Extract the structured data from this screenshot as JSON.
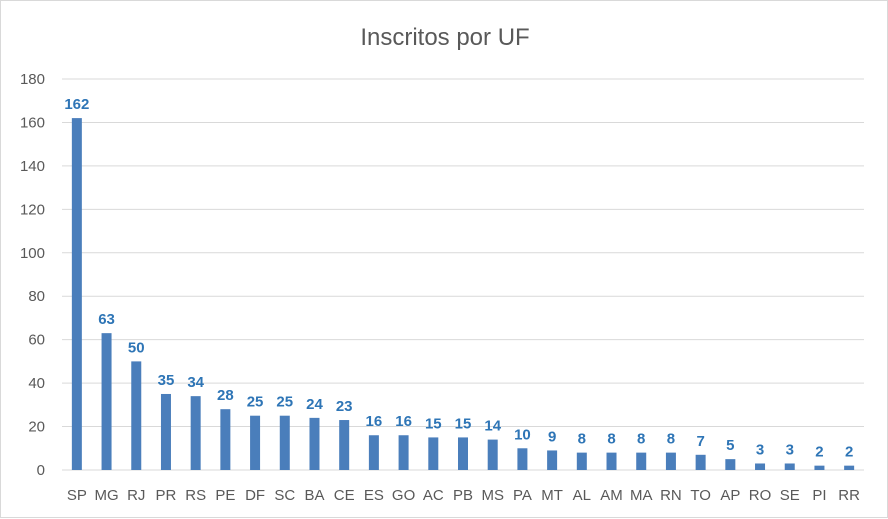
{
  "chart_data": {
    "type": "bar",
    "title": "Inscritos por UF",
    "xlabel": "",
    "ylabel": "",
    "categories": [
      "SP",
      "MG",
      "RJ",
      "PR",
      "RS",
      "PE",
      "DF",
      "SC",
      "BA",
      "CE",
      "ES",
      "GO",
      "AC",
      "PB",
      "MS",
      "PA",
      "MT",
      "AL",
      "AM",
      "MA",
      "RN",
      "TO",
      "AP",
      "RO",
      "SE",
      "PI",
      "RR"
    ],
    "values": [
      162,
      63,
      50,
      35,
      34,
      28,
      25,
      25,
      24,
      23,
      16,
      16,
      15,
      15,
      14,
      10,
      9,
      8,
      8,
      8,
      8,
      7,
      5,
      3,
      3,
      2,
      2
    ],
    "ylim": [
      0,
      180
    ],
    "yticks": [
      0,
      20,
      40,
      60,
      80,
      100,
      120,
      140,
      160,
      180
    ],
    "grid": true,
    "legend": "none",
    "data_labels": true,
    "colors": {
      "bar": "#4a7ebb",
      "data_label": "#2e75b6",
      "grid": "#d9d9d9",
      "text": "#595959"
    }
  }
}
